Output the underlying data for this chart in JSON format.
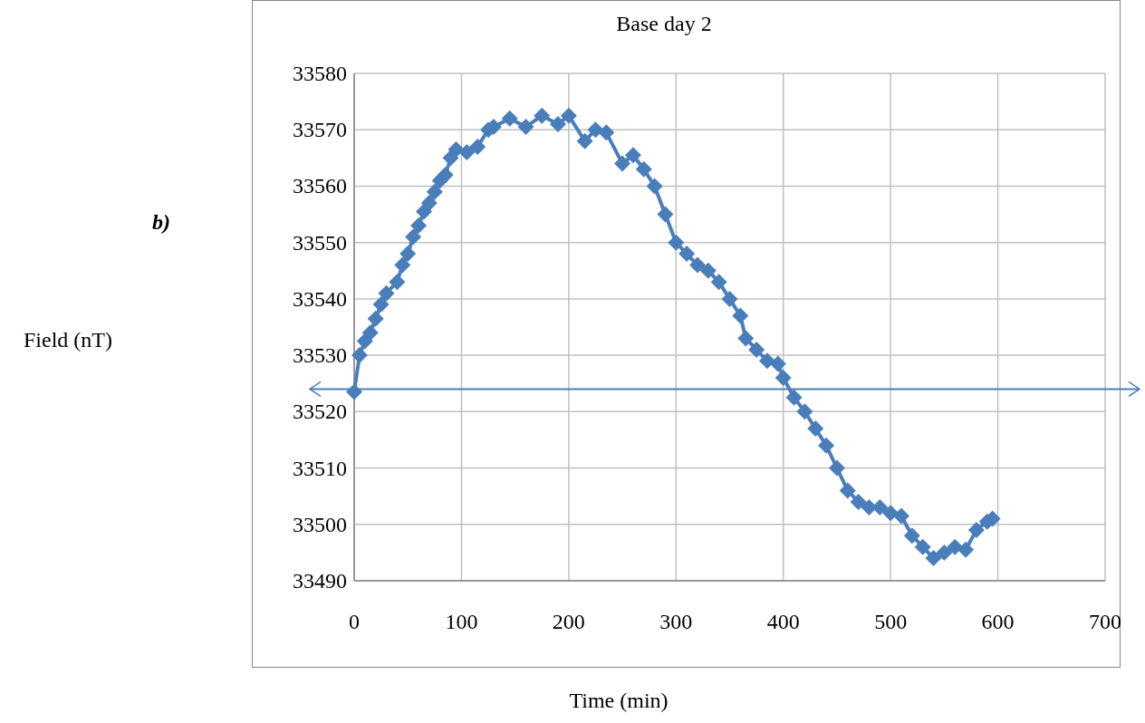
{
  "chart_data": {
    "type": "line",
    "title": "Base day 2",
    "xlabel": "Time (min)",
    "annotations": [
      "b)",
      "Field (nT)"
    ],
    "xlim": [
      0,
      700
    ],
    "xticks": [
      0,
      100,
      200,
      300,
      400,
      500,
      600,
      700
    ],
    "ylim": [
      33490,
      33580
    ],
    "yticks": [
      33490,
      33500,
      33510,
      33520,
      33530,
      33540,
      33550,
      33560,
      33570,
      33580
    ],
    "grid": true,
    "marker": "diamond",
    "line_style": "solid",
    "ref_lines": [
      {
        "axis": "y",
        "value": 33524,
        "color": "#4a7ebb"
      }
    ],
    "series": [
      {
        "color": "#4a7ebb",
        "x": [
          0,
          5,
          10,
          15,
          20,
          25,
          30,
          40,
          45,
          50,
          55,
          60,
          65,
          70,
          75,
          80,
          85,
          90,
          95,
          105,
          115,
          125,
          130,
          145,
          160,
          175,
          190,
          200,
          215,
          225,
          235,
          250,
          260,
          270,
          280,
          290,
          300,
          310,
          320,
          330,
          340,
          350,
          360,
          365,
          375,
          385,
          395,
          400,
          410,
          420,
          430,
          440,
          450,
          460,
          470,
          480,
          490,
          500,
          510,
          520,
          530,
          540,
          550,
          560,
          570,
          580,
          590,
          595
        ],
        "values": [
          33523.5,
          33530,
          33532.5,
          33534,
          33536.5,
          33539,
          33541,
          33543,
          33546,
          33548,
          33551,
          33553,
          33555.5,
          33557,
          33559,
          33561,
          33562,
          33565,
          33566.5,
          33566,
          33567,
          33570,
          33570.5,
          33572,
          33570.5,
          33572.5,
          33571,
          33572.5,
          33568,
          33570,
          33569.5,
          33564,
          33565.5,
          33563,
          33560,
          33555,
          33550,
          33548,
          33546,
          33545,
          33543,
          33540,
          33537,
          33533,
          33531,
          33529,
          33528.5,
          33526,
          33522.5,
          33520,
          33517,
          33514,
          33510,
          33506,
          33504,
          33503,
          33503,
          33502,
          33501.5,
          33498,
          33496,
          33494,
          33495,
          33496,
          33495.5,
          33499,
          33500.5,
          33501
        ]
      }
    ]
  }
}
